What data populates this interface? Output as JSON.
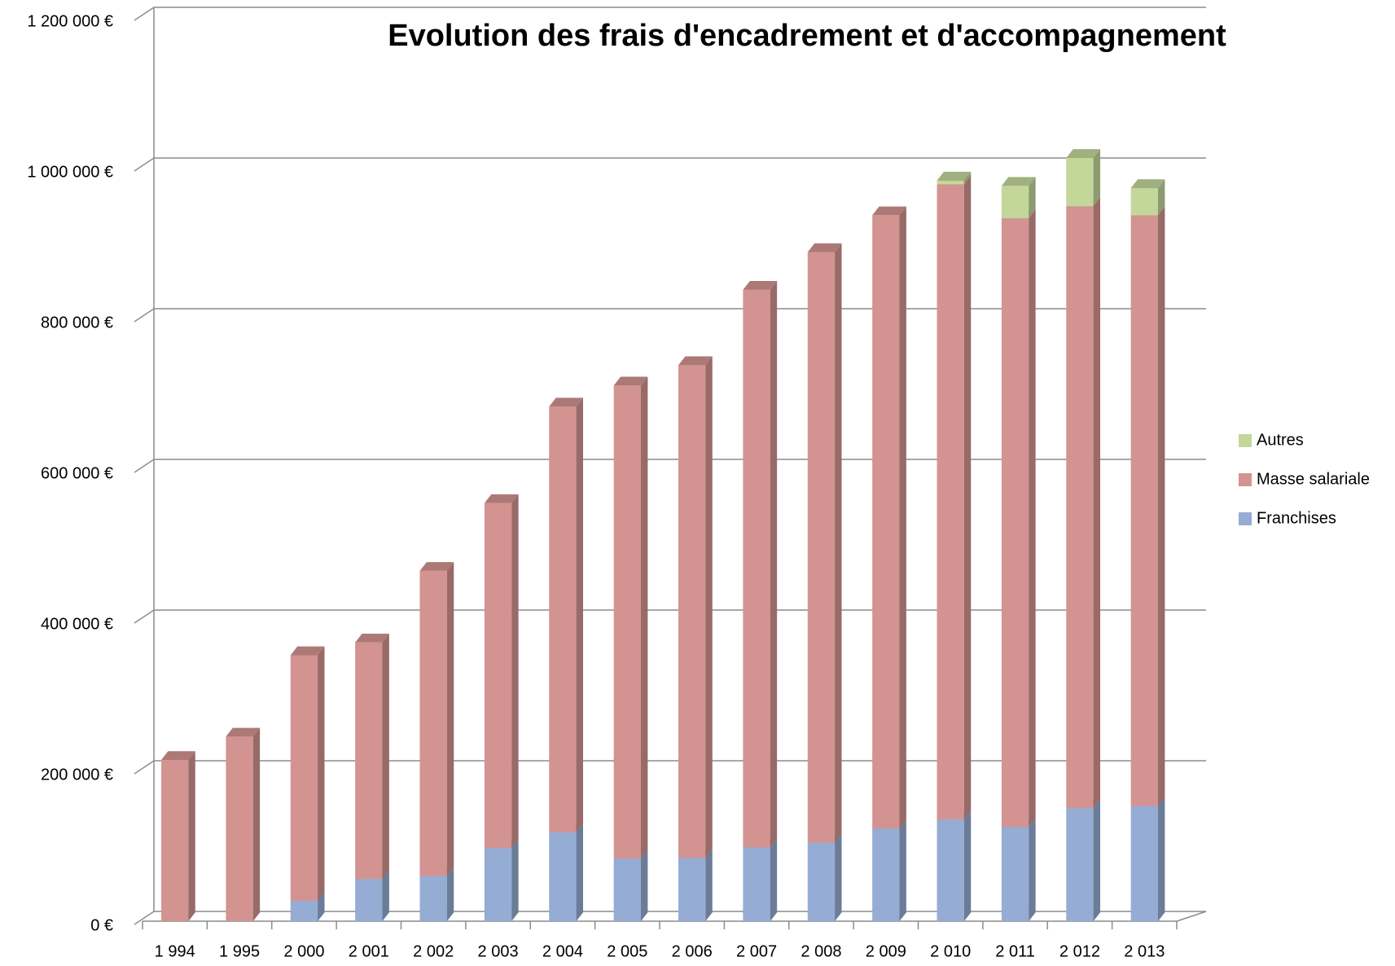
{
  "chart_data": {
    "type": "bar3d_stacked",
    "title": "Evolution des frais d'encadrement et d'accompagnement",
    "categories": [
      "1 994",
      "1 995",
      "2 000",
      "2 001",
      "2 002",
      "2 003",
      "2 004",
      "2 005",
      "2 006",
      "2 007",
      "2 008",
      "2 009",
      "2 010",
      "2 011",
      "2 012",
      "2 013"
    ],
    "series": [
      {
        "name": "Franchises",
        "color": "#95acd4",
        "values": [
          0,
          0,
          27000,
          56000,
          60000,
          97000,
          118000,
          83000,
          84000,
          98000,
          104000,
          123000,
          135000,
          125000,
          150000,
          153000
        ]
      },
      {
        "name": "Masse salariale",
        "color": "#d39391",
        "values": [
          214000,
          245000,
          326000,
          314000,
          405000,
          458000,
          565000,
          628000,
          654000,
          740000,
          784000,
          814000,
          843000,
          808000,
          799000,
          784000
        ]
      },
      {
        "name": "Autres",
        "color": "#c4d79b",
        "values": [
          0,
          0,
          0,
          0,
          0,
          0,
          0,
          0,
          0,
          0,
          0,
          0,
          5000,
          43000,
          64000,
          36000
        ]
      }
    ],
    "ylim": [
      0,
      1200000
    ],
    "yticks": [
      {
        "value": 0,
        "label": "0 €"
      },
      {
        "value": 200000,
        "label": "200 000 €"
      },
      {
        "value": 400000,
        "label": "400 000 €"
      },
      {
        "value": 600000,
        "label": "600 000 €"
      },
      {
        "value": 800000,
        "label": "800 000 €"
      },
      {
        "value": 1000000,
        "label": "1 000 000 €"
      },
      {
        "value": 1200000,
        "label": "1 200 000 €"
      }
    ],
    "grid": true,
    "legend": "right"
  }
}
